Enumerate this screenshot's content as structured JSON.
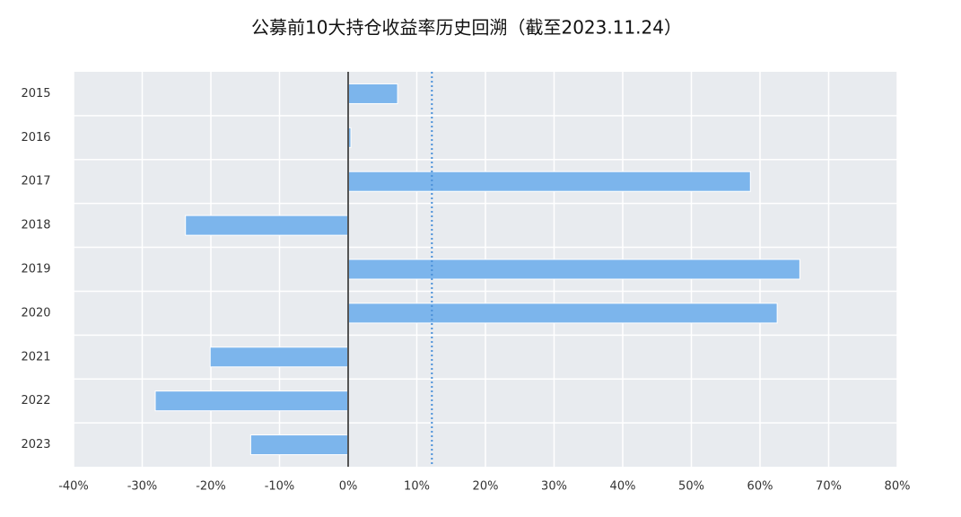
{
  "chart_data": {
    "type": "bar",
    "orientation": "horizontal",
    "title": "公募前10大持仓收益率历史回溯（截至2023.11.24）",
    "categories": [
      "2015",
      "2016",
      "2017",
      "2018",
      "2019",
      "2020",
      "2021",
      "2022",
      "2023"
    ],
    "values": [
      7.2,
      0.4,
      58.6,
      -23.7,
      65.8,
      62.5,
      -20.1,
      -28.1,
      -14.2
    ],
    "color": "#7cb5ec",
    "xlim": [
      -40,
      80
    ],
    "xticks": [
      {
        "value": -40,
        "label": "-40%"
      },
      {
        "value": -30,
        "label": "-30%"
      },
      {
        "value": -20,
        "label": "-20%"
      },
      {
        "value": -10,
        "label": "-10%"
      },
      {
        "value": 0,
        "label": "0%"
      },
      {
        "value": 10,
        "label": "10%"
      },
      {
        "value": 20,
        "label": "20%"
      },
      {
        "value": 30,
        "label": "30%"
      },
      {
        "value": 40,
        "label": "40%"
      },
      {
        "value": 50,
        "label": "50%"
      },
      {
        "value": 60,
        "label": "60%"
      },
      {
        "value": 70,
        "label": "70%"
      },
      {
        "value": 80,
        "label": "80%"
      }
    ],
    "reference_line": 12.2,
    "grid": true
  }
}
